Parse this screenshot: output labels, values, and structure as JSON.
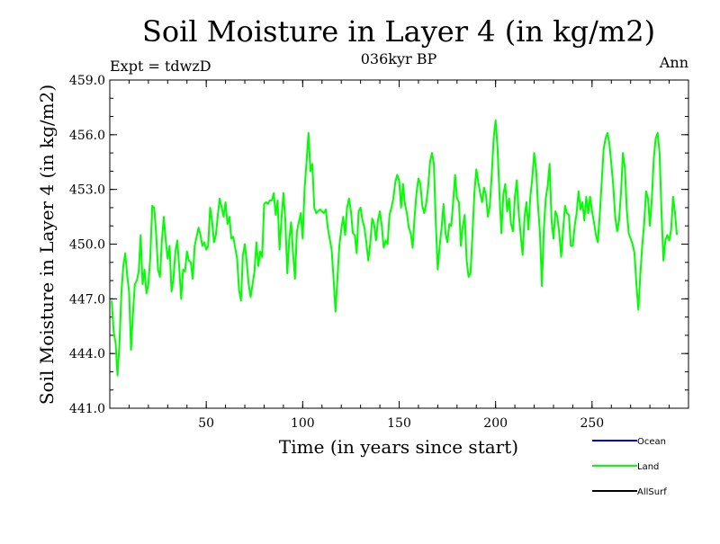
{
  "header": {
    "title": "Soil Moisture in Layer 4 (in kg/m2)",
    "subtitle": "036kyr BP",
    "left_label": "Expt = tdwzD",
    "right_label": "Ann"
  },
  "legend": [
    {
      "label": "Ocean",
      "color": "#0000ff"
    },
    {
      "label": "Land",
      "color": "#00ff00"
    },
    {
      "label": "AllSurf",
      "color": "#000000"
    }
  ],
  "chart_data": {
    "type": "line",
    "title": "Soil Moisture in Layer 4 (in kg/m2)",
    "xlabel": "Time (in years since start)",
    "ylabel": "Soil Moisture in Layer 4 (in kg/m2)",
    "xlim": [
      0,
      300
    ],
    "ylim": [
      441.0,
      459.0
    ],
    "x_ticks": [
      50,
      100,
      150,
      200,
      250
    ],
    "x_tick_labels": [
      "50",
      "100",
      "150",
      "200",
      "250"
    ],
    "y_ticks": [
      441.0,
      444.0,
      447.0,
      450.0,
      453.0,
      456.0,
      459.0
    ],
    "y_tick_labels": [
      "441.0",
      "444.0",
      "447.0",
      "450.0",
      "453.0",
      "456.0",
      "459.0"
    ],
    "grid": false,
    "series": [
      {
        "name": "Land",
        "color": "#00ff00",
        "x_start": 1,
        "x_step": 1,
        "values": [
          446.9,
          445.2,
          444.6,
          442.8,
          444.5,
          447.3,
          448.8,
          449.5,
          448.3,
          447.4,
          444.2,
          446.2,
          447.8,
          448.0,
          448.5,
          450.5,
          447.8,
          448.6,
          447.3,
          447.8,
          449.3,
          452.1,
          452.0,
          450.6,
          448.6,
          448.2,
          450.2,
          451.5,
          450.2,
          449.2,
          449.9,
          447.4,
          448.1,
          449.6,
          450.2,
          448.7,
          447.0,
          448.6,
          448.5,
          449.6,
          449.1,
          449.0,
          448.1,
          449.9,
          450.4,
          450.9,
          450.5,
          449.9,
          450.1,
          449.7,
          449.9,
          452.0,
          451.3,
          450.1,
          450.5,
          451.6,
          452.5,
          452.0,
          451.5,
          452.3,
          451.1,
          451.5,
          450.3,
          450.4,
          449.8,
          449.2,
          447.5,
          446.9,
          449.4,
          450.0,
          449.0,
          447.8,
          447.1,
          447.8,
          448.5,
          450.1,
          448.8,
          449.6,
          449.3,
          452.2,
          452.3,
          452.2,
          452.4,
          452.4,
          452.8,
          451.6,
          452.4,
          449.7,
          451.4,
          452.8,
          451.3,
          448.4,
          450.2,
          451.2,
          449.5,
          448.1,
          450.7,
          451.2,
          451.7,
          450.3,
          453.1,
          454.5,
          456.1,
          454.0,
          454.4,
          452.0,
          451.7,
          451.8,
          451.9,
          451.8,
          451.7,
          451.9,
          450.9,
          450.3,
          449.7,
          448.1,
          446.3,
          448.1,
          449.9,
          450.8,
          451.5,
          450.5,
          452.0,
          452.5,
          451.8,
          450.6,
          450.5,
          449.5,
          451.8,
          452.0,
          451.3,
          450.9,
          450.1,
          449.1,
          450.0,
          451.4,
          451.1,
          450.2,
          451.3,
          451.8,
          451.0,
          449.8,
          450.2,
          450.0,
          451.6,
          452.0,
          452.5,
          453.4,
          453.8,
          453.5,
          452.0,
          453.3,
          452.2,
          451.7,
          450.9,
          450.6,
          449.8,
          451.5,
          452.8,
          453.6,
          453.3,
          452.1,
          451.7,
          452.2,
          453.1,
          454.5,
          455.0,
          454.4,
          451.2,
          448.6,
          449.9,
          450.9,
          452.2,
          450.6,
          450.1,
          451.1,
          451.0,
          452.3,
          453.8,
          452.5,
          452.3,
          449.9,
          451.0,
          451.6,
          449.1,
          448.2,
          448.4,
          450.5,
          452.8,
          454.1,
          453.4,
          452.8,
          452.3,
          453.1,
          452.7,
          451.5,
          452.1,
          453.8,
          455.8,
          456.8,
          455.3,
          452.8,
          450.6,
          452.7,
          453.3,
          451.8,
          452.5,
          451.1,
          450.7,
          452.6,
          453.5,
          451.7,
          450.5,
          449.4,
          451.5,
          452.3,
          450.8,
          452.6,
          453.6,
          455.0,
          454.1,
          452.1,
          450.6,
          447.7,
          450.8,
          452.5,
          453.2,
          454.4,
          451.3,
          450.3,
          451.8,
          451.5,
          450.6,
          449.3,
          450.8,
          452.1,
          451.7,
          451.6,
          449.9,
          449.9,
          451.0,
          451.7,
          452.9,
          451.9,
          452.3,
          451.3,
          452.6,
          451.7,
          452.6,
          451.8,
          451.2,
          450.5,
          450.1,
          451.6,
          453.4,
          455.2,
          455.8,
          456.1,
          455.5,
          454.4,
          453.2,
          451.5,
          450.7,
          451.3,
          452.8,
          455.0,
          454.2,
          451.9,
          450.6,
          450.3,
          450.0,
          449.5,
          447.8,
          446.4,
          448.3,
          449.9,
          451.1,
          452.9,
          452.5,
          451.0,
          452.5,
          454.7,
          455.8,
          456.1,
          455.0,
          451.8,
          449.1,
          450.2,
          450.5,
          450.2,
          450.8,
          452.6,
          451.7,
          450.5
        ]
      },
      {
        "name": "Ocean",
        "color": "#0000ff",
        "values": []
      },
      {
        "name": "AllSurf",
        "color": "#000000",
        "values": []
      }
    ]
  }
}
